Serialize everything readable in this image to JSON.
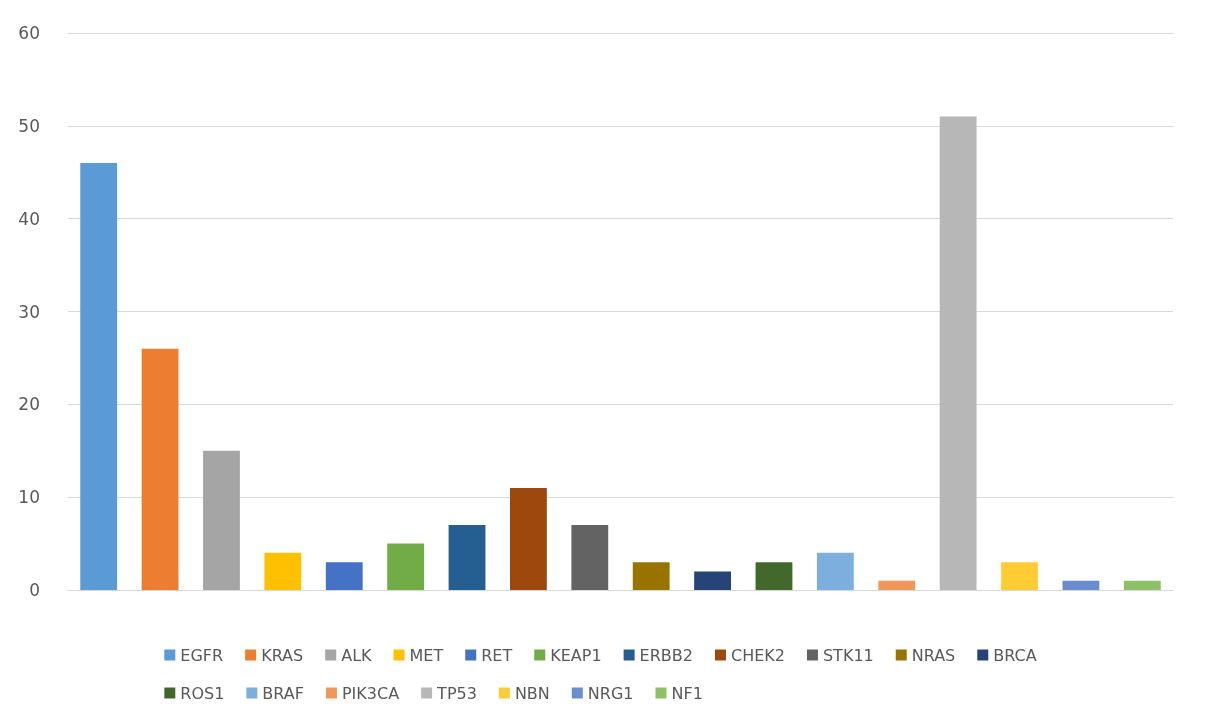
{
  "chart_data": {
    "type": "bar",
    "categories": [
      null,
      null,
      null,
      null,
      null,
      null,
      null,
      null,
      null,
      null,
      null,
      null,
      null,
      null,
      null,
      null,
      null,
      null
    ],
    "series": [
      {
        "name": "EGFR",
        "color": "#5b9bd5",
        "values": [
          46,
          null,
          null,
          null,
          null,
          null,
          null,
          null,
          null,
          null,
          null,
          null,
          null,
          null,
          null,
          null,
          null,
          null
        ]
      },
      {
        "name": "KRAS",
        "color": "#ed7d31",
        "values": [
          null,
          26,
          null,
          null,
          null,
          null,
          null,
          null,
          null,
          null,
          null,
          null,
          null,
          null,
          null,
          null,
          null,
          null
        ]
      },
      {
        "name": "ALK",
        "color": "#a5a5a5",
        "values": [
          null,
          null,
          15,
          null,
          null,
          null,
          null,
          null,
          null,
          null,
          null,
          null,
          null,
          null,
          null,
          null,
          null,
          null
        ]
      },
      {
        "name": "MET",
        "color": "#ffc000",
        "values": [
          null,
          null,
          null,
          4,
          null,
          null,
          null,
          null,
          null,
          null,
          null,
          null,
          null,
          null,
          null,
          null,
          null,
          null
        ]
      },
      {
        "name": "RET",
        "color": "#4472c4",
        "values": [
          null,
          null,
          null,
          null,
          3,
          null,
          null,
          null,
          null,
          null,
          null,
          null,
          null,
          null,
          null,
          null,
          null,
          null
        ]
      },
      {
        "name": "KEAP1",
        "color": "#70ad47",
        "values": [
          null,
          null,
          null,
          null,
          null,
          5,
          null,
          null,
          null,
          null,
          null,
          null,
          null,
          null,
          null,
          null,
          null,
          null
        ]
      },
      {
        "name": "ERBB2",
        "color": "#255e91",
        "values": [
          null,
          null,
          null,
          null,
          null,
          null,
          7,
          null,
          null,
          null,
          null,
          null,
          null,
          null,
          null,
          null,
          null,
          null
        ]
      },
      {
        "name": "CHEK2",
        "color": "#9e480e",
        "values": [
          null,
          null,
          null,
          null,
          null,
          null,
          null,
          11,
          null,
          null,
          null,
          null,
          null,
          null,
          null,
          null,
          null,
          null
        ]
      },
      {
        "name": "STK11",
        "color": "#636363",
        "values": [
          null,
          null,
          null,
          null,
          null,
          null,
          null,
          null,
          7,
          null,
          null,
          null,
          null,
          null,
          null,
          null,
          null,
          null
        ]
      },
      {
        "name": "NRAS",
        "color": "#997300",
        "values": [
          null,
          null,
          null,
          null,
          null,
          null,
          null,
          null,
          null,
          3,
          null,
          null,
          null,
          null,
          null,
          null,
          null,
          null
        ]
      },
      {
        "name": "BRCA",
        "color": "#264478",
        "values": [
          null,
          null,
          null,
          null,
          null,
          null,
          null,
          null,
          null,
          null,
          2,
          null,
          null,
          null,
          null,
          null,
          null,
          null
        ]
      },
      {
        "name": "ROS1",
        "color": "#43682b",
        "values": [
          null,
          null,
          null,
          null,
          null,
          null,
          null,
          null,
          null,
          null,
          null,
          3,
          null,
          null,
          null,
          null,
          null,
          null
        ]
      },
      {
        "name": "BRAF",
        "color": "#7cafdd",
        "values": [
          null,
          null,
          null,
          null,
          null,
          null,
          null,
          null,
          null,
          null,
          null,
          null,
          4,
          null,
          null,
          null,
          null,
          null
        ]
      },
      {
        "name": "PIK3CA",
        "color": "#f1975a",
        "values": [
          null,
          null,
          null,
          null,
          null,
          null,
          null,
          null,
          null,
          null,
          null,
          null,
          null,
          1,
          null,
          null,
          null,
          null
        ]
      },
      {
        "name": "TP53",
        "color": "#b7b7b7",
        "values": [
          null,
          null,
          null,
          null,
          null,
          null,
          null,
          null,
          null,
          null,
          null,
          null,
          null,
          null,
          51,
          null,
          null,
          null
        ]
      },
      {
        "name": "NBN",
        "color": "#ffcd33",
        "values": [
          null,
          null,
          null,
          null,
          null,
          null,
          null,
          null,
          null,
          null,
          null,
          null,
          null,
          null,
          null,
          3,
          null,
          null
        ]
      },
      {
        "name": "NRG1",
        "color": "#698ed0",
        "values": [
          null,
          null,
          null,
          null,
          null,
          null,
          null,
          null,
          null,
          null,
          null,
          null,
          null,
          null,
          null,
          null,
          1,
          null
        ]
      },
      {
        "name": "NF1",
        "color": "#8cc168",
        "values": [
          null,
          null,
          null,
          null,
          null,
          null,
          null,
          null,
          null,
          null,
          null,
          null,
          null,
          null,
          null,
          null,
          null,
          1
        ]
      }
    ],
    "ylim": [
      0,
      60
    ],
    "yticks": [
      0,
      10,
      20,
      30,
      40,
      50,
      60
    ],
    "grid": "y",
    "legend": "bottom"
  }
}
